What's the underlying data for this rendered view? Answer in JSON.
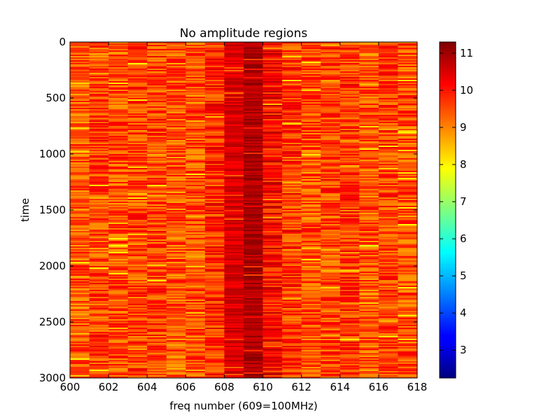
{
  "chart_data": {
    "type": "heatmap",
    "title": "No amplitude regions",
    "xlabel": "freq number (609=100MHz)",
    "ylabel": "time",
    "xlim": [
      600,
      618
    ],
    "ylim": [
      3000,
      0
    ],
    "y_inverted": true,
    "x_ticks": [
      "600",
      "602",
      "604",
      "606",
      "608",
      "610",
      "612",
      "614",
      "616",
      "618"
    ],
    "y_ticks": [
      "0",
      "500",
      "1000",
      "1500",
      "2000",
      "2500",
      "3000"
    ],
    "colormap": "jet",
    "colorbar": {
      "range": [
        2.25,
        11.3
      ],
      "ticks": [
        "3",
        "4",
        "5",
        "6",
        "7",
        "8",
        "9",
        "10",
        "11"
      ]
    },
    "grid": false,
    "columns": [
      {
        "freq": 600,
        "mean": 9.4
      },
      {
        "freq": 601,
        "mean": 9.6
      },
      {
        "freq": 602,
        "mean": 9.5
      },
      {
        "freq": 603,
        "mean": 9.6
      },
      {
        "freq": 604,
        "mean": 9.6
      },
      {
        "freq": 605,
        "mean": 9.4
      },
      {
        "freq": 606,
        "mean": 9.5
      },
      {
        "freq": 607,
        "mean": 9.8
      },
      {
        "freq": 608,
        "mean": 10.5
      },
      {
        "freq": 609,
        "mean": 10.9
      },
      {
        "freq": 610,
        "mean": 10.1
      },
      {
        "freq": 611,
        "mean": 9.7
      },
      {
        "freq": 612,
        "mean": 9.5
      },
      {
        "freq": 613,
        "mean": 9.6
      },
      {
        "freq": 614,
        "mean": 9.7
      },
      {
        "freq": 615,
        "mean": 9.4
      },
      {
        "freq": 616,
        "mean": 9.6
      },
      {
        "freq": 617,
        "mean": 9.5
      }
    ]
  }
}
